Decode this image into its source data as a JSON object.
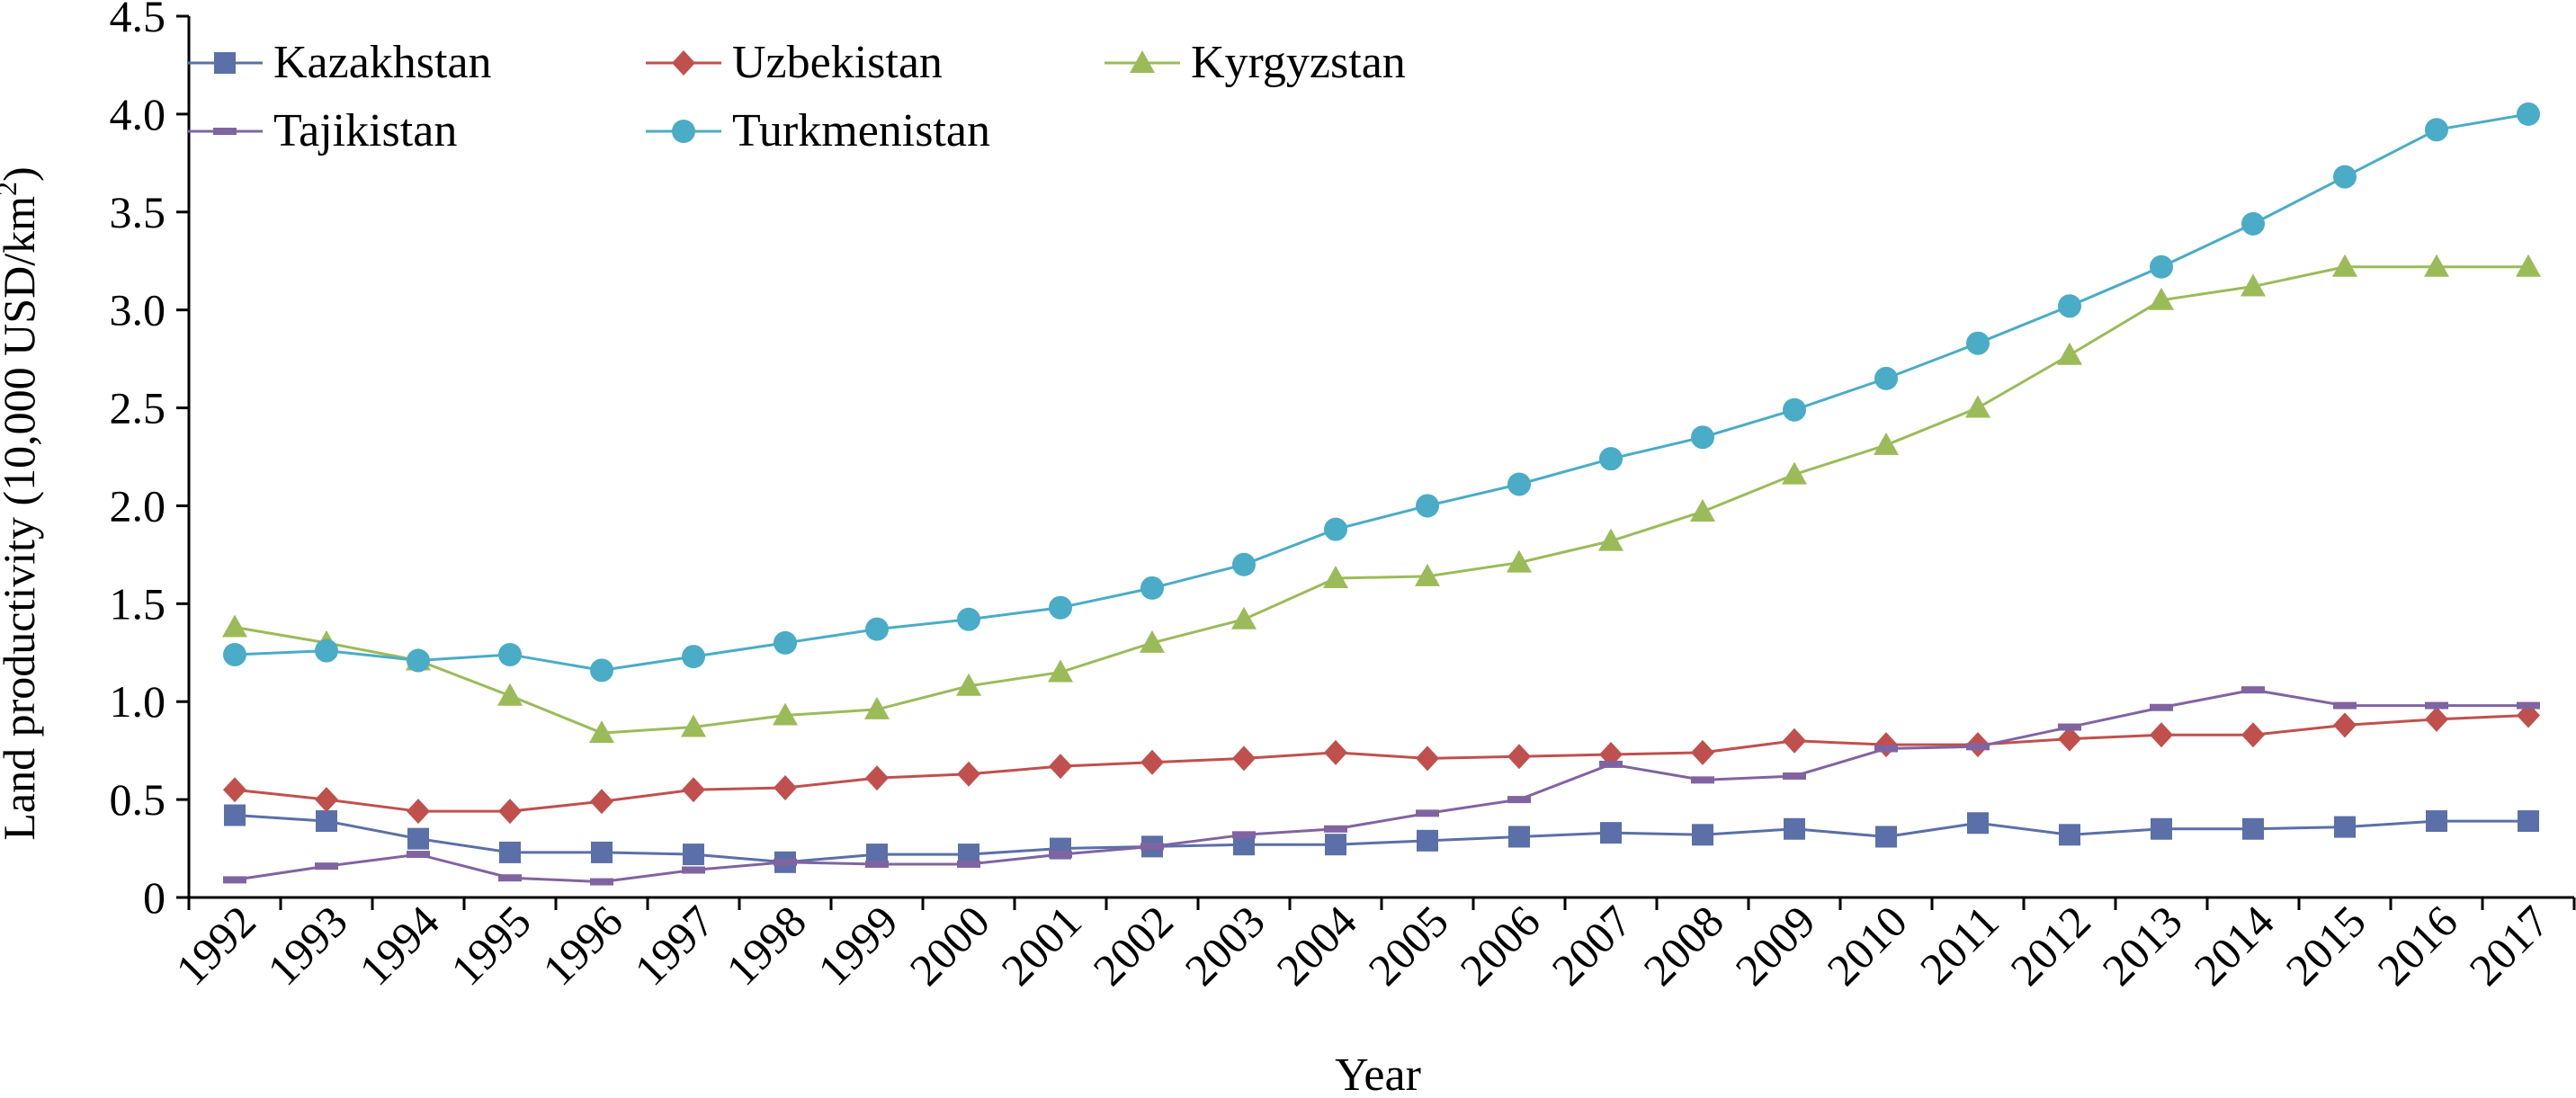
{
  "chart_data": {
    "type": "line",
    "title": "",
    "xlabel": "Year",
    "ylabel_main": "Land productivity (10,000 USD/km",
    "ylabel_sup": "2",
    "ylabel_end": ")",
    "ylim": [
      0,
      4.5
    ],
    "yticks": [
      "0",
      "0.5",
      "1.0",
      "1.5",
      "2.0",
      "2.5",
      "3.0",
      "3.5",
      "4.0",
      "4.5"
    ],
    "ytick_values": [
      0,
      0.5,
      1.0,
      1.5,
      2.0,
      2.5,
      3.0,
      3.5,
      4.0,
      4.5
    ],
    "categories": [
      "1992",
      "1993",
      "1994",
      "1995",
      "1996",
      "1997",
      "1998",
      "1999",
      "2000",
      "2001",
      "2002",
      "2003",
      "2004",
      "2005",
      "2006",
      "2007",
      "2008",
      "2009",
      "2010",
      "2011",
      "2012",
      "2013",
      "2014",
      "2015",
      "2016",
      "2017"
    ],
    "legend_position": "top-left",
    "grid": false,
    "series": [
      {
        "name": "Kazakhstan",
        "color": "#5b6fa8",
        "marker": "square",
        "values": [
          0.42,
          0.39,
          0.3,
          0.23,
          0.23,
          0.22,
          0.18,
          0.22,
          0.22,
          0.25,
          0.26,
          0.27,
          0.27,
          0.29,
          0.31,
          0.33,
          0.32,
          0.35,
          0.31,
          0.38,
          0.32,
          0.35,
          0.35,
          0.36,
          0.39,
          0.39
        ]
      },
      {
        "name": "Uzbekistan",
        "color": "#c0504d",
        "marker": "diamond",
        "values": [
          0.55,
          0.5,
          0.44,
          0.44,
          0.49,
          0.55,
          0.56,
          0.61,
          0.63,
          0.67,
          0.69,
          0.71,
          0.74,
          0.71,
          0.72,
          0.73,
          0.74,
          0.8,
          0.78,
          0.78,
          0.81,
          0.83,
          0.83,
          0.88,
          0.91,
          0.93
        ]
      },
      {
        "name": "Kyrgyzstan",
        "color": "#9bbb59",
        "marker": "triangle",
        "values": [
          1.38,
          1.3,
          1.21,
          1.03,
          0.84,
          0.87,
          0.93,
          0.96,
          1.08,
          1.15,
          1.3,
          1.42,
          1.63,
          1.64,
          1.71,
          1.82,
          1.97,
          2.16,
          2.31,
          2.5,
          2.77,
          3.05,
          3.12,
          3.22,
          3.22,
          3.22
        ]
      },
      {
        "name": "Tajikistan",
        "color": "#8064a2",
        "marker": "dash",
        "values": [
          0.09,
          0.16,
          0.22,
          0.1,
          0.08,
          0.14,
          0.18,
          0.17,
          0.17,
          0.22,
          0.26,
          0.32,
          0.35,
          0.43,
          0.5,
          0.68,
          0.6,
          0.62,
          0.76,
          0.77,
          0.87,
          0.97,
          1.06,
          0.98,
          0.98,
          0.98
        ]
      },
      {
        "name": "Turkmenistan",
        "color": "#4aacc6",
        "marker": "circle",
        "values": [
          1.24,
          1.26,
          1.21,
          1.24,
          1.16,
          1.23,
          1.3,
          1.37,
          1.42,
          1.48,
          1.58,
          1.7,
          1.88,
          2.0,
          2.11,
          2.24,
          2.35,
          2.49,
          2.65,
          2.83,
          3.02,
          3.22,
          3.44,
          3.68,
          3.92,
          4.0
        ]
      }
    ]
  }
}
